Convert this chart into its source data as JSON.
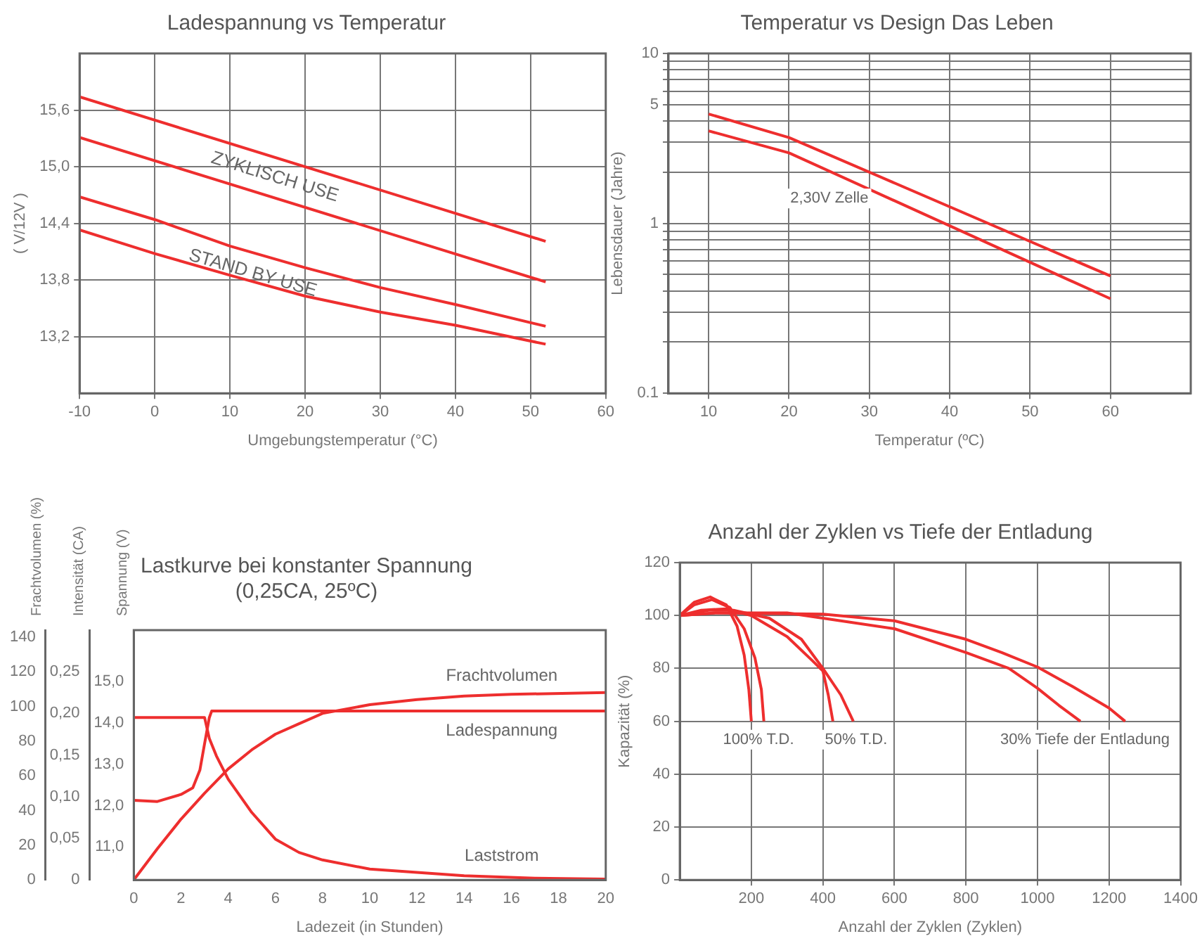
{
  "chart_data": [
    {
      "type": "line",
      "title": "Ladespannung vs Temperatur",
      "xlabel": "Umgebungstemperatur (°C)",
      "ylabel": "( V/12V )",
      "marker": "none",
      "grid": true,
      "xlim": [
        -10,
        60
      ],
      "xticks": [
        -10,
        0,
        10,
        20,
        30,
        40,
        50,
        60
      ],
      "ylim": [
        12.6,
        16.2
      ],
      "yticks": [
        {
          "value": 13.2,
          "label": "13,2"
        },
        {
          "value": 13.8,
          "label": "13,8"
        },
        {
          "value": 14.4,
          "label": "14,4"
        },
        {
          "value": 15.0,
          "label": "15,0"
        },
        {
          "value": 15.6,
          "label": "15,6"
        }
      ],
      "series": [
        {
          "color": "#ee2e2e",
          "x": [
            -10,
            52
          ],
          "values": [
            15.74,
            14.21
          ]
        },
        {
          "color": "#ee2e2e",
          "x": [
            -10,
            52
          ],
          "values": [
            15.31,
            13.78
          ]
        },
        {
          "color": "#ee2e2e",
          "x": [
            -10,
            0,
            10,
            20,
            30,
            40,
            52
          ],
          "values": [
            14.68,
            14.44,
            14.16,
            13.93,
            13.72,
            13.54,
            13.31
          ]
        },
        {
          "color": "#ee2e2e",
          "x": [
            -10,
            0,
            10,
            20,
            30,
            40,
            52
          ],
          "values": [
            14.33,
            14.08,
            13.85,
            13.63,
            13.46,
            13.32,
            13.12
          ]
        }
      ],
      "annotations": [
        "ZYKLISCH USE",
        "STAND BY USE"
      ]
    },
    {
      "type": "line",
      "title": "Temperatur vs Design Das Leben",
      "xlabel": "Temperatur (ºC)",
      "ylabel": "Lebensdauer (Jahre)",
      "marker": "none",
      "grid": true,
      "log": "y",
      "xlim": [
        5,
        70
      ],
      "xticks": [
        10,
        20,
        30,
        40,
        50,
        60
      ],
      "ylim": [
        0.1,
        10
      ],
      "yticks": [
        {
          "value": 0.1,
          "label": "0.1"
        },
        {
          "value": 0.2,
          "label": null
        },
        {
          "value": 0.3,
          "label": null
        },
        {
          "value": 0.4,
          "label": null
        },
        {
          "value": 0.5,
          "label": null
        },
        {
          "value": 0.6,
          "label": null
        },
        {
          "value": 0.7,
          "label": null
        },
        {
          "value": 0.8,
          "label": null
        },
        {
          "value": 0.9,
          "label": null
        },
        1,
        {
          "value": 2,
          "label": null
        },
        {
          "value": 3,
          "label": null
        },
        {
          "value": 4,
          "label": null
        },
        5,
        {
          "value": 6,
          "label": null
        },
        {
          "value": 7,
          "label": null
        },
        {
          "value": 8,
          "label": null
        },
        {
          "value": 9,
          "label": null
        },
        10
      ],
      "series": [
        {
          "color": "#ee2e2e",
          "x": [
            10,
            20,
            60
          ],
          "values": [
            4.4,
            3.2,
            0.49
          ]
        },
        {
          "color": "#ee2e2e",
          "x": [
            10,
            20,
            60
          ],
          "values": [
            3.5,
            2.6,
            0.36
          ]
        }
      ],
      "annotations": [
        "2,30V Zelle"
      ]
    },
    {
      "type": "line",
      "title": "Lastkurve bei konstanter Spannung",
      "subtitle": "(0,25CA, 25ºC)",
      "xlabel": "Ladezeit (in Stunden)",
      "ylabel": "Frachtvolumen (%)",
      "y2label": "Intensität (CA)",
      "y3label": "Spannung (V)",
      "marker": "none",
      "grid": false,
      "xlim": [
        0,
        20
      ],
      "xticks": [
        0,
        2,
        4,
        6,
        8,
        10,
        12,
        14,
        16,
        18,
        20
      ],
      "ylim": [
        0,
        144
      ],
      "yticks": [
        0,
        20,
        40,
        60,
        80,
        100,
        120,
        140
      ],
      "y2lim": [
        0,
        0.3
      ],
      "y2ticks": [
        0,
        {
          "value": 0.05,
          "label": "0,05"
        },
        {
          "value": 0.1,
          "label": "0,10"
        },
        {
          "value": 0.15,
          "label": "0,15"
        },
        {
          "value": 0.2,
          "label": "0,20"
        },
        {
          "value": 0.25,
          "label": "0,25"
        }
      ],
      "y3lim": [
        10.2,
        16.25
      ],
      "y3ticks": [
        {
          "value": 11,
          "label": "11,0"
        },
        {
          "value": 12,
          "label": "12,0"
        },
        {
          "value": 13,
          "label": "13,0"
        },
        {
          "value": 14,
          "label": "14,0"
        },
        {
          "value": 15,
          "label": "15,0"
        }
      ],
      "series": [
        {
          "name": "Frachtvolumen",
          "color": "#ee2e2e",
          "x": [
            0,
            1,
            2,
            3,
            4,
            5,
            6,
            7,
            8,
            10,
            12,
            14,
            16,
            20
          ],
          "values": [
            0,
            18,
            35,
            50,
            64,
            75,
            84,
            90,
            96,
            101,
            104,
            106,
            107,
            108
          ]
        },
        {
          "name": "Ladespannung",
          "color": "#ee2e2e",
          "axis": "y3",
          "x": [
            0,
            1,
            2,
            2.5,
            2.8,
            3.0,
            3.2,
            3.3,
            20
          ],
          "values": [
            12.13,
            12.1,
            12.27,
            12.43,
            12.86,
            13.5,
            14.13,
            14.29,
            14.29
          ]
        },
        {
          "name": "Laststrom",
          "color": "#ee2e2e",
          "axis": "y2",
          "x": [
            0,
            3.0,
            3.2,
            3.5,
            4,
            5,
            6,
            7,
            8,
            10,
            12,
            14,
            17,
            20
          ],
          "values": [
            0.195,
            0.195,
            0.17,
            0.149,
            0.121,
            0.081,
            0.049,
            0.033,
            0.024,
            0.013,
            0.009,
            0.005,
            0.002,
            0.001
          ]
        }
      ]
    },
    {
      "type": "line",
      "title": "Anzahl der Zyklen vs Tiefe der Entladung",
      "xlabel": "Anzahl der Zyklen (Zyklen)",
      "ylabel": "Kapazität (%)",
      "marker": "none",
      "grid": true,
      "xlim": [
        0,
        1400
      ],
      "xticks": [
        200,
        400,
        600,
        800,
        1000,
        1200,
        1400
      ],
      "ylim": [
        0,
        120
      ],
      "yticks": [
        0,
        20,
        40,
        60,
        80,
        100,
        120
      ],
      "series": [
        {
          "color": "#ee2e2e",
          "x": [
            0,
            40,
            85,
            130,
            160,
            180,
            193,
            200
          ],
          "values": [
            100,
            105,
            107,
            104,
            96,
            85,
            72,
            60
          ]
        },
        {
          "color": "#ee2e2e",
          "x": [
            0,
            40,
            90,
            140,
            180,
            210,
            228,
            235
          ],
          "values": [
            100,
            104,
            106,
            103,
            95,
            84,
            72,
            60
          ]
        },
        {
          "color": "#ee2e2e",
          "x": [
            0,
            60,
            130,
            200,
            300,
            370,
            400,
            415,
            428
          ],
          "values": [
            100,
            102,
            102.5,
            100,
            92,
            83,
            79,
            70,
            60
          ]
        },
        {
          "color": "#ee2e2e",
          "x": [
            0,
            80,
            150,
            250,
            340,
            400,
            450,
            485
          ],
          "values": [
            100,
            102,
            102,
            99,
            91,
            80,
            70,
            60
          ]
        },
        {
          "color": "#ee2e2e",
          "x": [
            0,
            100,
            300,
            400,
            600,
            800,
            920,
            1000,
            1060,
            1120
          ],
          "values": [
            100,
            101,
            101,
            99,
            95,
            86,
            80,
            72.5,
            66,
            60
          ]
        },
        {
          "color": "#ee2e2e",
          "x": [
            0,
            100,
            400,
            600,
            800,
            900,
            1000,
            1100,
            1200,
            1245
          ],
          "values": [
            100,
            101,
            100.5,
            98,
            91,
            86,
            80.5,
            73,
            65,
            60
          ]
        }
      ],
      "annotations": [
        "100% T.D.",
        "50% T.D.",
        "30% Tiefe der Entladung"
      ]
    }
  ]
}
